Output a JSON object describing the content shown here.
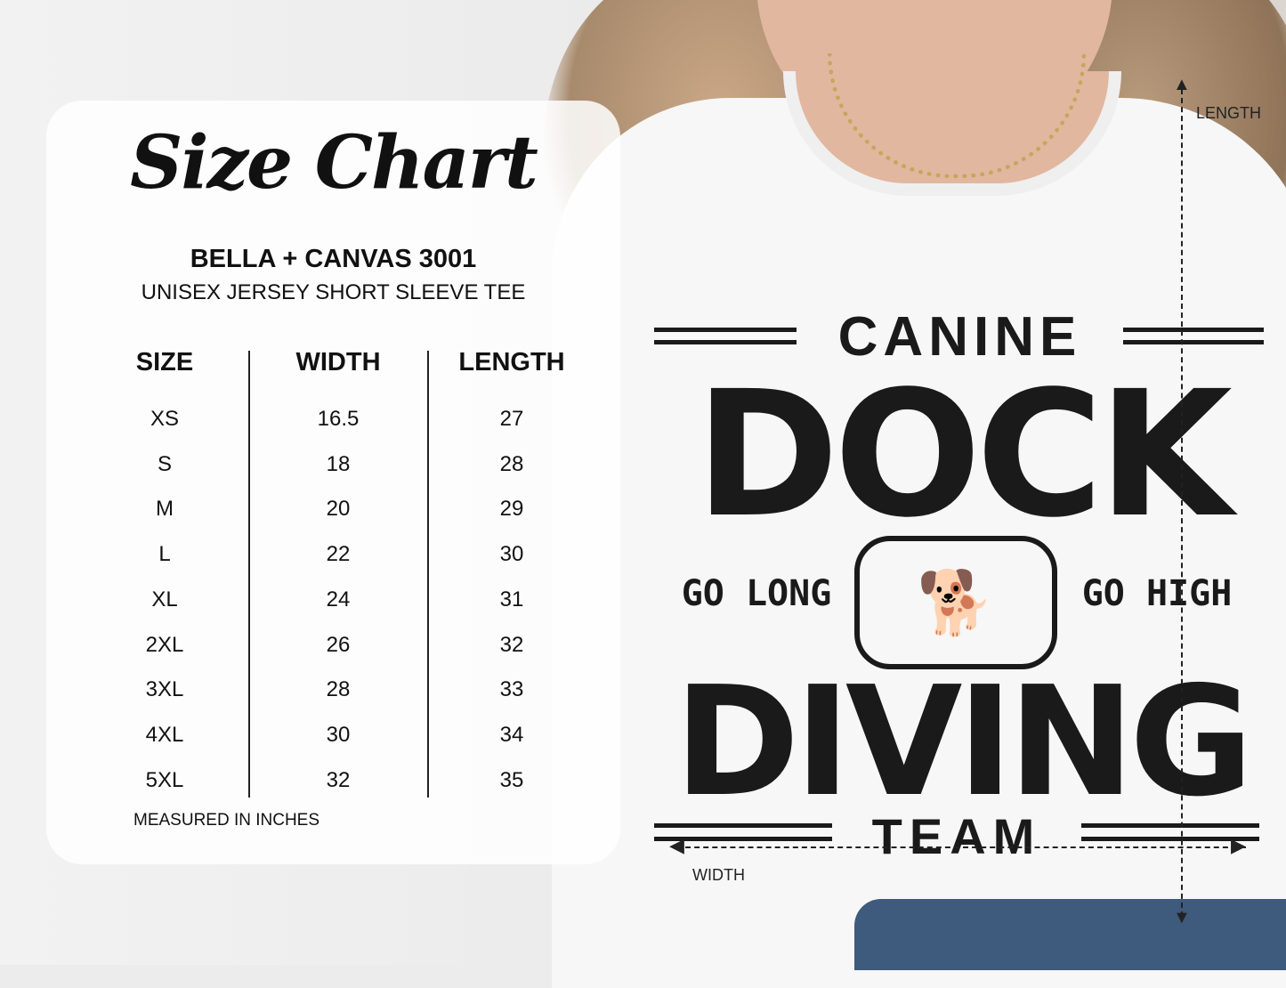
{
  "chart": {
    "title": "Size Chart",
    "brand": "BELLA + CANVAS 3001",
    "subtitle": "UNISEX JERSEY SHORT SLEEVE TEE",
    "headers": [
      "SIZE",
      "WIDTH",
      "LENGTH"
    ],
    "sizes": [
      "XS",
      "S",
      "M",
      "L",
      "XL",
      "2XL",
      "3XL",
      "4XL",
      "5XL"
    ],
    "widths": [
      "16.5",
      "18",
      "20",
      "22",
      "24",
      "26",
      "28",
      "30",
      "32"
    ],
    "lengths": [
      "27",
      "28",
      "29",
      "30",
      "31",
      "32",
      "33",
      "34",
      "35"
    ],
    "note": "MEASURED IN INCHES"
  },
  "shirt": {
    "line1": "CANINE",
    "line2": "DOCK",
    "left": "GO LONG",
    "right": "GO HIGH",
    "line3": "DIVING",
    "line4": "TEAM",
    "length_label": "LENGTH",
    "width_label": "WIDTH"
  }
}
